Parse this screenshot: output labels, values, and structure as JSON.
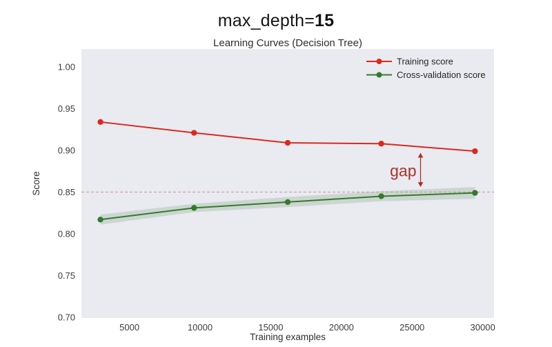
{
  "page": {
    "title_prefix": "max_depth=",
    "title_value": "15"
  },
  "chart_data": {
    "type": "line",
    "title": "Learning Curves (Decision Tree)",
    "xlabel": "Training examples",
    "ylabel": "Score",
    "x": [
      2945,
      9570,
      16200,
      22820,
      29450
    ],
    "series": [
      {
        "name": "Training score",
        "color": "#da291c",
        "marker": "circle",
        "values": [
          0.934,
          0.921,
          0.909,
          0.908,
          0.899
        ]
      },
      {
        "name": "Cross-validation score",
        "color": "#35792f",
        "marker": "circle",
        "values": [
          0.817,
          0.831,
          0.838,
          0.845,
          0.849
        ],
        "band_std": [
          0.006,
          0.005,
          0.006,
          0.006,
          0.007
        ],
        "band_opacity": 0.17
      }
    ],
    "xtick_values": [
      5000,
      10000,
      15000,
      20000,
      25000,
      30000
    ],
    "xtick_labels": [
      "5000",
      "10000",
      "15000",
      "20000",
      "25000",
      "30000"
    ],
    "ytick_values": [
      0.7,
      0.75,
      0.8,
      0.85,
      0.9,
      0.95,
      1.0
    ],
    "ytick_labels": [
      "0.70",
      "0.75",
      "0.80",
      "0.85",
      "0.90",
      "0.95",
      "1.00"
    ],
    "xlim": [
      1600,
      30800
    ],
    "ylim": [
      0.699,
      1.0215
    ],
    "grid": false,
    "plot_background": "#eaeaf1",
    "figure_background": "#ffffff",
    "legend": {
      "position": "upper-right",
      "entries": [
        "Training score",
        "Cross-validation score"
      ]
    },
    "reference_line": {
      "y": 0.85,
      "color": "#c89191",
      "style": "dashed"
    },
    "annotation": {
      "text": "gap",
      "color": "#a93226",
      "x": 25600,
      "y_top": 0.897,
      "y_bottom": 0.856
    }
  }
}
